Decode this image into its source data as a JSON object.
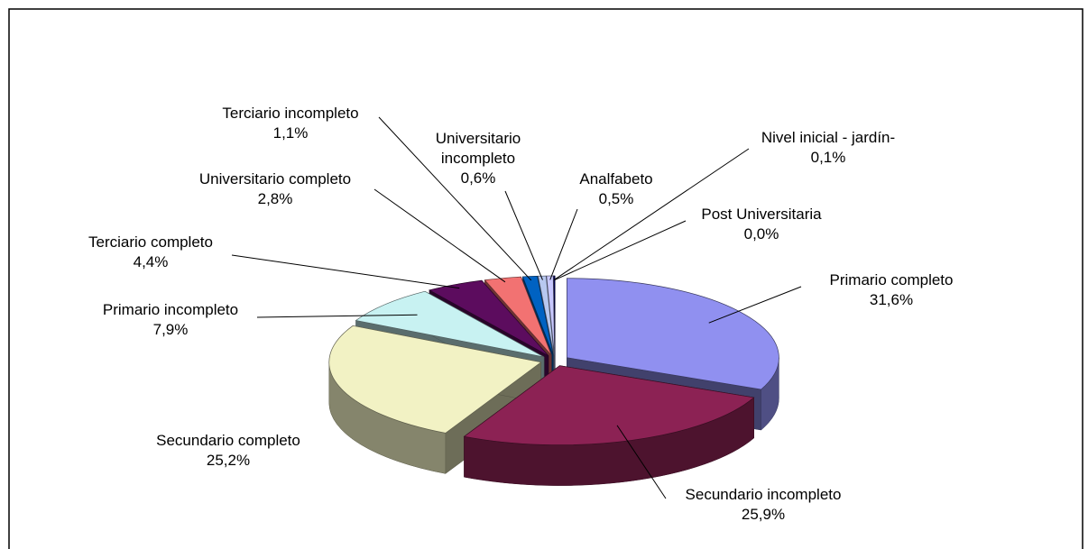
{
  "chart_data": {
    "type": "pie3d",
    "categories": [
      "Primario completo",
      "Secundario incompleto",
      "Secundario completo",
      "Primario incompleto",
      "Terciario completo",
      "Universitario completo",
      "Terciario incompleto",
      "Universitario incompleto",
      "Analfabeto",
      "Nivel inicial - jardín-",
      "Post Universitaria"
    ],
    "values": [
      31.6,
      25.9,
      25.2,
      7.9,
      4.4,
      2.8,
      1.1,
      0.6,
      0.5,
      0.1,
      0.0
    ],
    "value_labels": [
      "31,6%",
      "25,9%",
      "25,2%",
      "7,9%",
      "4,4%",
      "2,8%",
      "1,1%",
      "0,6%",
      "0,5%",
      "0,1%",
      "0,0%"
    ],
    "colors": [
      "#9090f0",
      "#8c2254",
      "#f2f2c4",
      "#c8f2f2",
      "#5c0c5e",
      "#f27272",
      "#0062c2",
      "#b8c8f0",
      "#c8c8ff",
      "#000066",
      "#b0b0b0"
    ]
  }
}
